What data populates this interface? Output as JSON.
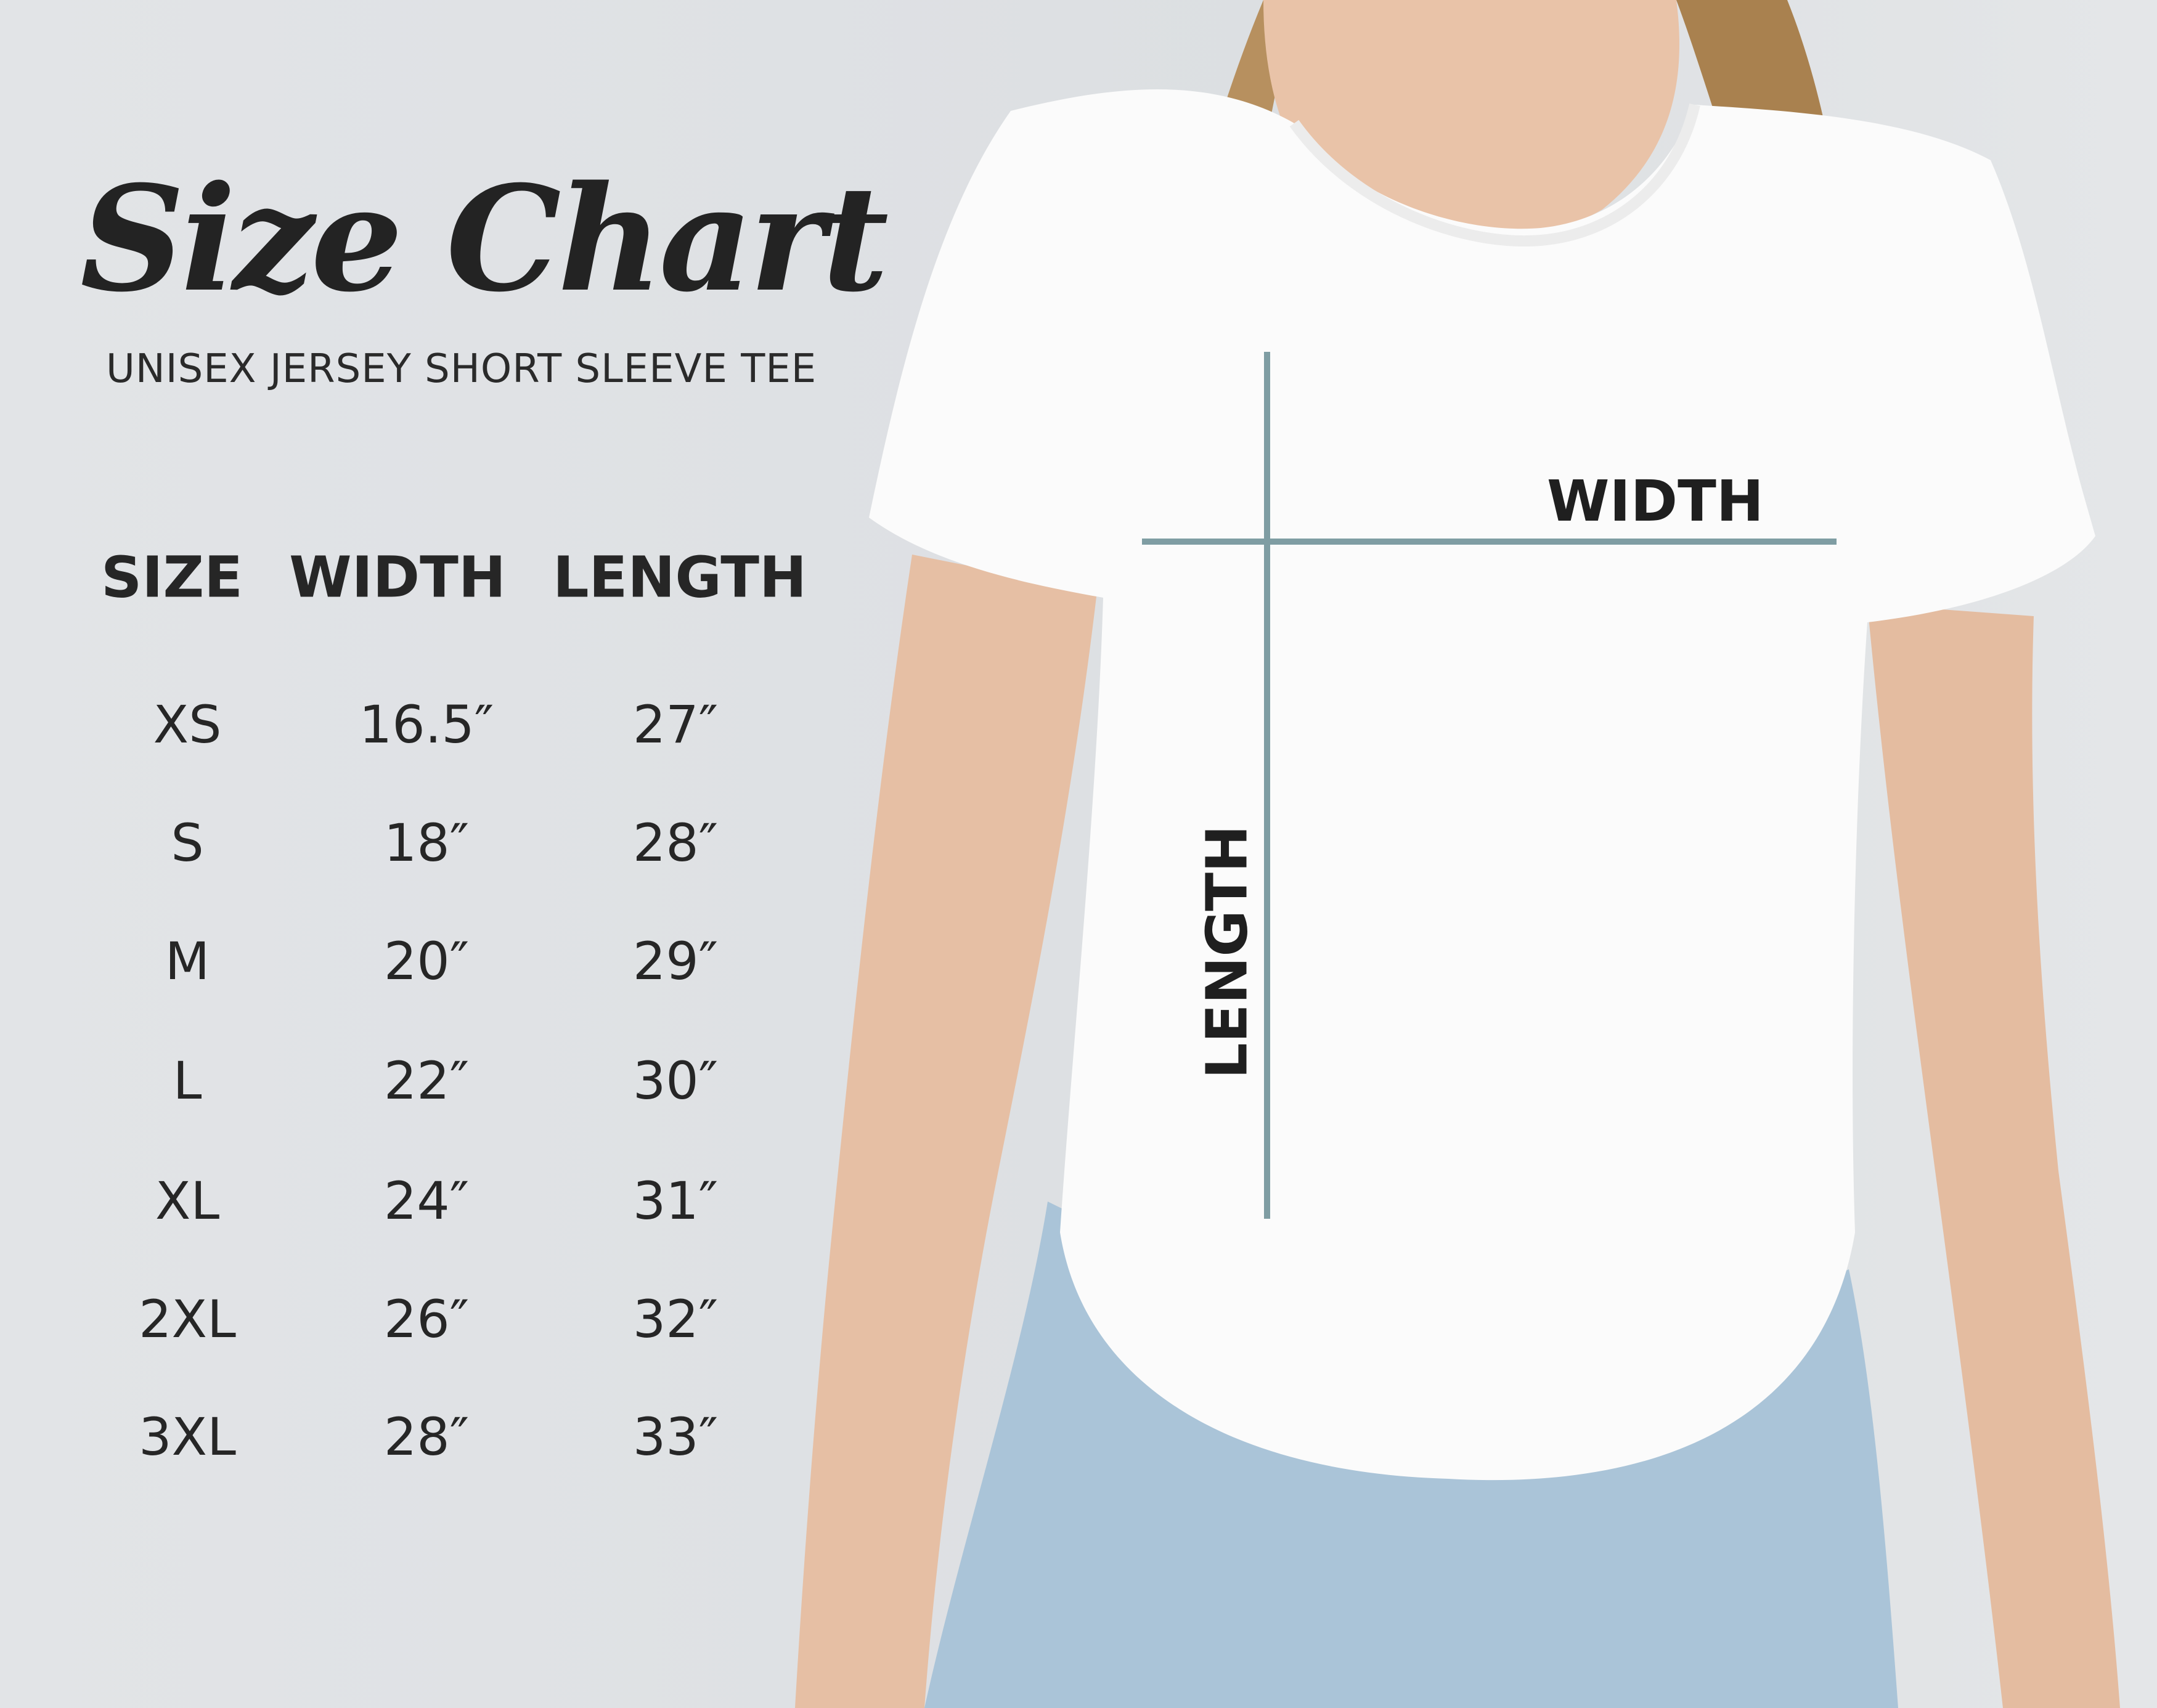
{
  "header": {
    "title": "Size Chart",
    "subtitle": "UNISEX JERSEY SHORT SLEEVE TEE"
  },
  "table": {
    "columns": [
      "SIZE",
      "WIDTH",
      "LENGTH"
    ],
    "rows": [
      {
        "size": "XS",
        "width": "16.5″",
        "length": "27″"
      },
      {
        "size": "S",
        "width": "18″",
        "length": "28″"
      },
      {
        "size": "M",
        "width": "20″",
        "length": "29″"
      },
      {
        "size": "L",
        "width": "22″",
        "length": "30″"
      },
      {
        "size": "XL",
        "width": "24″",
        "length": "31″"
      },
      {
        "size": "2XL",
        "width": "26″",
        "length": "32″"
      },
      {
        "size": "3XL",
        "width": "28″",
        "length": "33″"
      }
    ]
  },
  "diagram": {
    "width_label": "WIDTH",
    "length_label": "LENGTH",
    "line_color": "#7f9da3"
  }
}
